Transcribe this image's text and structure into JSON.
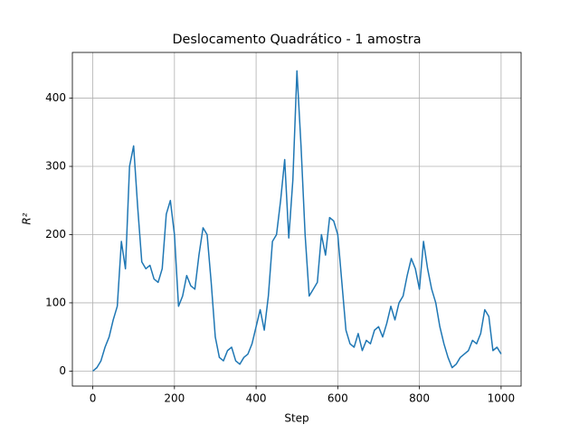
{
  "chart_data": {
    "type": "line",
    "title": "Deslocamento Quadrático - 1 amostra",
    "x_label": "Step",
    "y_label": "R²",
    "x": [
      0,
      10,
      20,
      30,
      40,
      50,
      60,
      70,
      80,
      90,
      100,
      110,
      120,
      130,
      140,
      150,
      160,
      170,
      180,
      190,
      200,
      210,
      220,
      230,
      240,
      250,
      260,
      270,
      280,
      290,
      300,
      310,
      320,
      330,
      340,
      350,
      360,
      370,
      380,
      390,
      400,
      410,
      420,
      430,
      440,
      450,
      460,
      470,
      480,
      490,
      500,
      510,
      520,
      530,
      540,
      550,
      560,
      570,
      580,
      590,
      600,
      610,
      620,
      630,
      640,
      650,
      660,
      670,
      680,
      690,
      700,
      710,
      720,
      730,
      740,
      750,
      760,
      770,
      780,
      790,
      800,
      810,
      820,
      830,
      840,
      850,
      860,
      870,
      880,
      890,
      900,
      910,
      920,
      930,
      940,
      950,
      960,
      970,
      980,
      990,
      1000
    ],
    "series": [
      {
        "color": "#1f77b4",
        "values": [
          0,
          5,
          15,
          35,
          50,
          75,
          95,
          190,
          150,
          300,
          330,
          240,
          160,
          150,
          155,
          135,
          130,
          150,
          230,
          250,
          200,
          95,
          110,
          140,
          125,
          120,
          170,
          210,
          200,
          130,
          50,
          20,
          15,
          30,
          35,
          15,
          10,
          20,
          25,
          40,
          65,
          90,
          60,
          110,
          190,
          200,
          250,
          310,
          195,
          280,
          440,
          330,
          200,
          110,
          120,
          130,
          200,
          170,
          225,
          220,
          200,
          130,
          60,
          40,
          35,
          55,
          30,
          45,
          40,
          60,
          65,
          50,
          70,
          95,
          75,
          100,
          110,
          140,
          165,
          150,
          120,
          190,
          150,
          120,
          100,
          65,
          40,
          20,
          5,
          10,
          20,
          25,
          30,
          45,
          40,
          55,
          90,
          80,
          30,
          35,
          25
        ]
      }
    ],
    "xlim": [
      -50,
      1049
    ],
    "ylim": [
      -22,
      467
    ],
    "xticks": [
      0,
      200,
      400,
      600,
      800,
      1000
    ],
    "yticks": [
      0,
      100,
      200,
      300,
      400
    ],
    "grid": true
  }
}
